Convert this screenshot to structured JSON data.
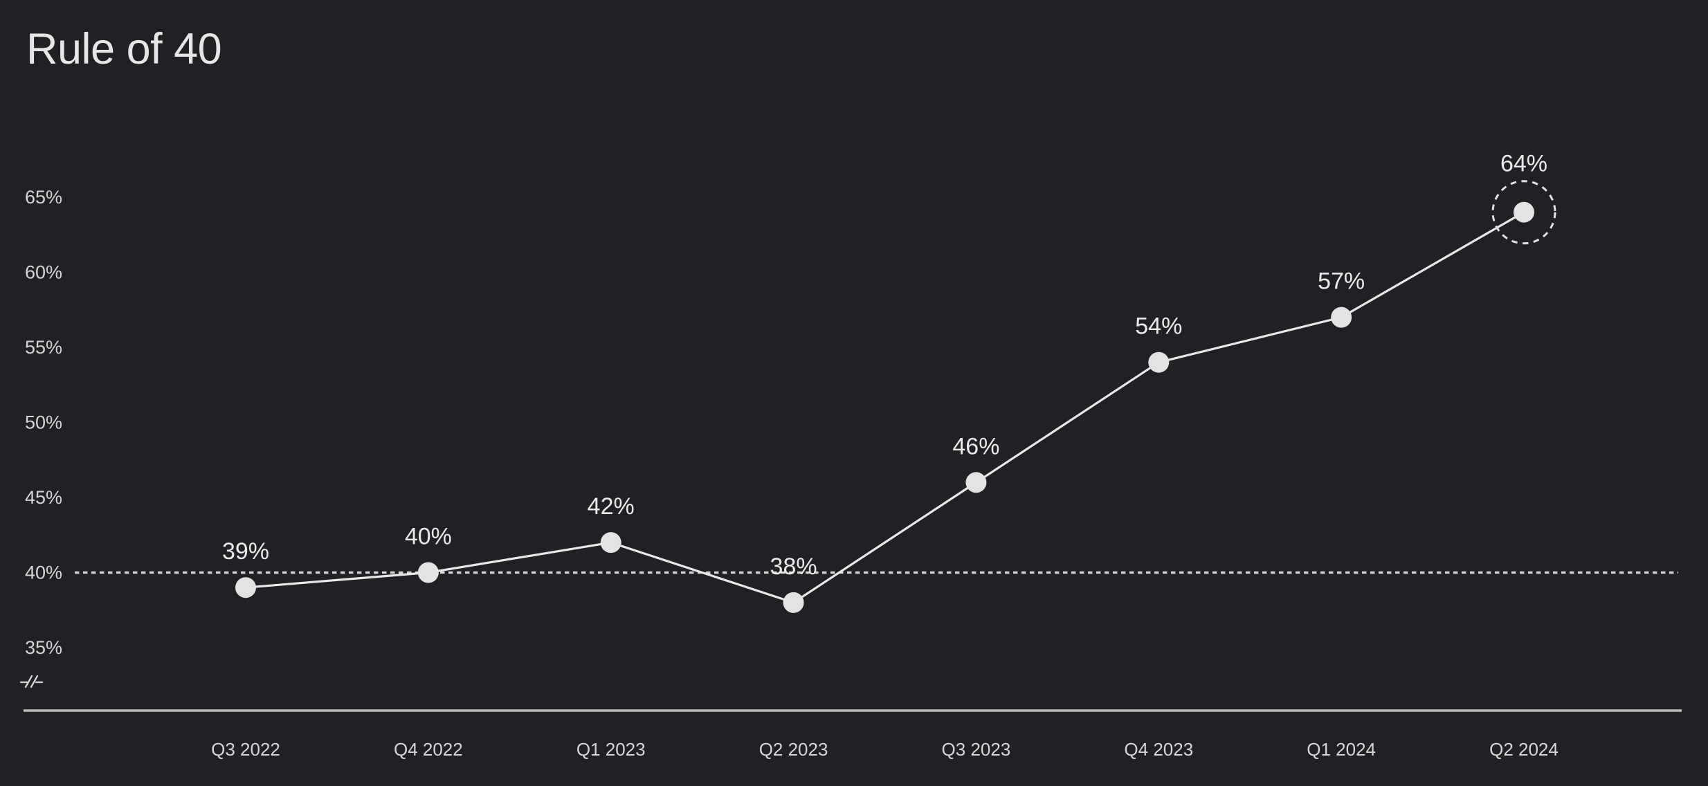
{
  "chart_data": {
    "type": "line",
    "title": "Rule of 40",
    "categories": [
      "Q3 2022",
      "Q4 2022",
      "Q1 2023",
      "Q2 2023",
      "Q3 2023",
      "Q4 2023",
      "Q1 2024",
      "Q2 2024"
    ],
    "series": [
      {
        "name": "Rule of 40",
        "values": [
          39,
          40,
          42,
          38,
          46,
          54,
          57,
          64
        ]
      }
    ],
    "point_labels": [
      "39%",
      "40%",
      "42%",
      "38%",
      "46%",
      "54%",
      "57%",
      "64%"
    ],
    "y_axis": {
      "ticks": [
        65,
        60,
        55,
        50,
        45,
        40,
        35
      ],
      "tick_labels": [
        "65%",
        "60%",
        "55%",
        "50%",
        "45%",
        "40%",
        "35%"
      ],
      "range": [
        35,
        65
      ],
      "axis_break": true
    },
    "x_axis": {
      "line": true
    },
    "threshold_line": {
      "value": 40,
      "style": "dotted"
    },
    "highlight": {
      "category": "Q2 2024",
      "index": 7,
      "style": "dashed-ring"
    },
    "grid": false,
    "legend": false,
    "colors": {
      "background": "#202124",
      "title_text": "#e6e6e6",
      "line": "#e8e8e8",
      "point_fill": "#e3e3e3",
      "label_text": "#eaeaea",
      "tick_text": "#d6d6d6",
      "threshold": "#d9d9d9",
      "axis": "#bdbdbd",
      "highlight_ring": "#e3e3e3"
    }
  }
}
